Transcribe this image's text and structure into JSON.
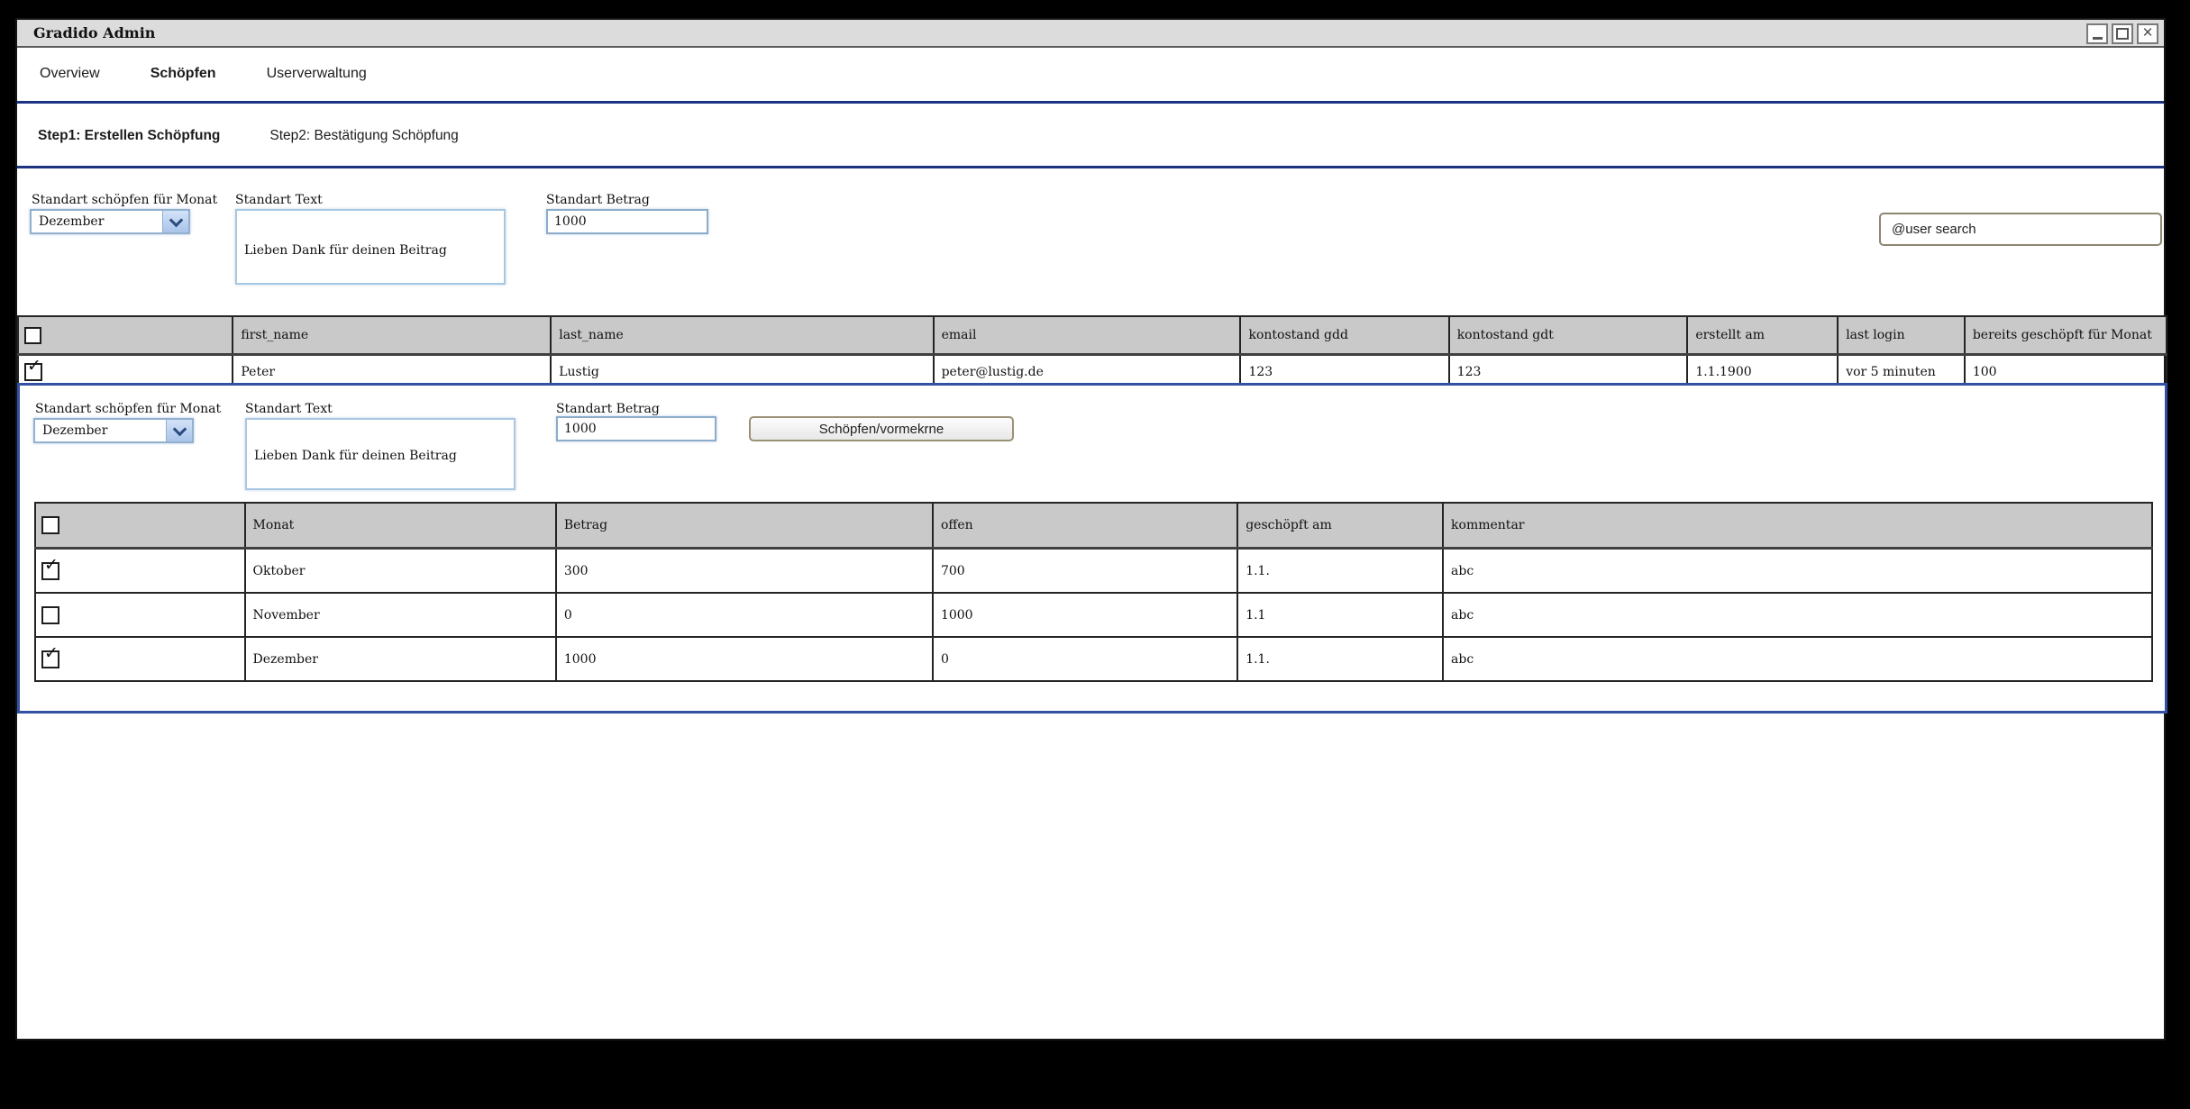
{
  "window": {
    "title": "Gradido Admin"
  },
  "icons": {
    "close": "×",
    "check": "✓"
  },
  "nav": {
    "tabs": [
      {
        "label": "Overview",
        "active": false
      },
      {
        "label": "Schöpfen",
        "active": true
      },
      {
        "label": "Userverwaltung",
        "active": false
      }
    ]
  },
  "steps": [
    {
      "label": "Step1: Erstellen Schöpfung",
      "active": true
    },
    {
      "label": "Step2: Bestätigung Schöpfung",
      "active": false
    }
  ],
  "main_form": {
    "month_label": "Standart schöpfen für Monat",
    "month_value": "Dezember",
    "text_label": "Standart Text",
    "text_value": "Lieben Dank für deinen Beitrag",
    "amount_label": "Standart Betrag",
    "amount_value": "1000",
    "search_value": "@user search"
  },
  "user_table": {
    "headers": [
      "first_name",
      "last_name",
      "email",
      "kontostand gdd",
      "kontostand gdt",
      "erstellt am",
      "last login",
      "bereits geschöpft für Monat"
    ],
    "rows": [
      {
        "checked": true,
        "cells": [
          "Peter",
          "Lustig",
          "peter@lustig.de",
          "123",
          "123",
          "1.1.1900",
          "vor 5 minuten",
          "100"
        ]
      }
    ]
  },
  "detail_panel": {
    "form": {
      "month_label": "Standart schöpfen für Monat",
      "month_value": "Dezember",
      "text_label": "Standart Text",
      "text_value": "Lieben Dank für deinen Beitrag",
      "amount_label": "Standart Betrag",
      "amount_value": "1000"
    },
    "submit_label": "Schöpfen/vormekrne",
    "creation_table": {
      "headers": [
        "Monat",
        "Betrag",
        "offen",
        "geschöpft am",
        "kommentar"
      ],
      "rows": [
        {
          "checked": true,
          "cells": [
            "Oktober",
            "300",
            "700",
            "1.1.",
            "abc"
          ]
        },
        {
          "checked": false,
          "cells": [
            "November",
            "0",
            "1000",
            "1.1",
            "abc"
          ]
        },
        {
          "checked": true,
          "cells": [
            "Dezember",
            "1000",
            "0",
            "1.1.",
            "abc"
          ]
        }
      ]
    }
  },
  "colors": {
    "nav_line": "#1b3382",
    "panel_border": "#3250a4",
    "header_bg": "#c9c9c9",
    "titlebar_bg": "#dcdcdc",
    "input_border": "#9db9d6"
  }
}
